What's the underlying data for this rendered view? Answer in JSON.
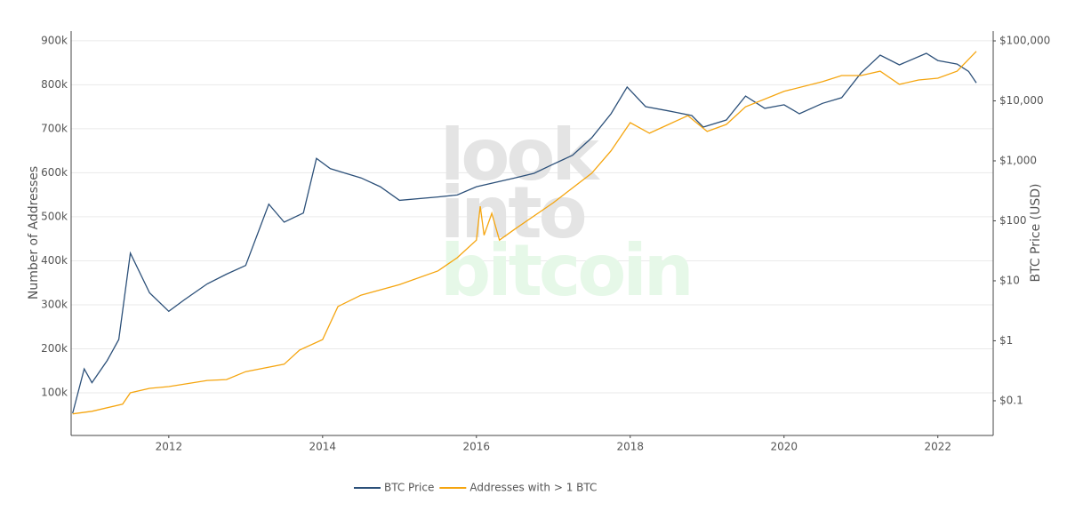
{
  "chart_data": {
    "type": "line",
    "watermark": [
      "look",
      "into",
      "bitcoin"
    ],
    "y_label": "Number of Addresses",
    "y2_label": "BTC Price (USD)",
    "xlim": [
      2010.73,
      2022.72
    ],
    "xticks": [
      2012,
      2014,
      2016,
      2018,
      2020,
      2022
    ],
    "ylim": [
      3000,
      922000
    ],
    "yticks": [
      {
        "value": 100000,
        "label": "100k"
      },
      {
        "value": 200000,
        "label": "200k"
      },
      {
        "value": 300000,
        "label": "300k"
      },
      {
        "value": 400000,
        "label": "400k"
      },
      {
        "value": 500000,
        "label": "500k"
      },
      {
        "value": 600000,
        "label": "600k"
      },
      {
        "value": 700000,
        "label": "700k"
      },
      {
        "value": 800000,
        "label": "800k"
      },
      {
        "value": 900000,
        "label": "900k"
      }
    ],
    "y2lim": [
      0.0264,
      145500
    ],
    "y2_log": true,
    "y2ticks": [
      {
        "value": 0.1,
        "label": "$0.1"
      },
      {
        "value": 1,
        "label": "$1"
      },
      {
        "value": 10,
        "label": "$10"
      },
      {
        "value": 100,
        "label": "$100"
      },
      {
        "value": 1000,
        "label": "$1,000"
      },
      {
        "value": 10000,
        "label": "$10,000"
      },
      {
        "value": 100000,
        "label": "$100,000"
      }
    ],
    "grid": true,
    "legend": "bottom",
    "series": [
      {
        "name": "BTC Price",
        "color": "#2c5079",
        "axis": "y2",
        "x": [
          2010.75,
          2010.9,
          2011.0,
          2011.2,
          2011.35,
          2011.5,
          2011.75,
          2012.0,
          2012.2,
          2012.5,
          2012.75,
          2013.0,
          2013.3,
          2013.5,
          2013.75,
          2013.92,
          2014.1,
          2014.5,
          2014.75,
          2015.0,
          2015.5,
          2015.75,
          2016.0,
          2016.5,
          2016.75,
          2017.0,
          2017.25,
          2017.5,
          2017.75,
          2017.96,
          2018.2,
          2018.5,
          2018.8,
          2018.95,
          2019.25,
          2019.5,
          2019.75,
          2020.0,
          2020.2,
          2020.5,
          2020.75,
          2021.0,
          2021.25,
          2021.5,
          2021.85,
          2022.0,
          2022.25,
          2022.4,
          2022.5
        ],
        "values": [
          0.062,
          0.34,
          0.2,
          0.47,
          1.05,
          29,
          6.3,
          3.1,
          4.8,
          8.9,
          12.9,
          18,
          190,
          95,
          135,
          1100,
          740,
          520,
          370,
          220,
          250,
          270,
          370,
          520,
          620,
          880,
          1240,
          2430,
          6100,
          17000,
          8000,
          6800,
          5700,
          3650,
          4800,
          12000,
          7500,
          8600,
          6100,
          9100,
          11300,
          29000,
          58000,
          39800,
          62000,
          47000,
          41000,
          31000,
          20000
        ]
      },
      {
        "name": "Addresses with > 1 BTC",
        "color": "#f5a50f",
        "axis": "y",
        "x": [
          2010.75,
          2011.0,
          2011.4,
          2011.5,
          2011.75,
          2012.0,
          2012.5,
          2012.75,
          2013.0,
          2013.5,
          2013.7,
          2014.0,
          2014.2,
          2014.5,
          2015.0,
          2015.5,
          2015.75,
          2016.0,
          2016.05,
          2016.1,
          2016.2,
          2016.3,
          2016.5,
          2017.0,
          2017.5,
          2017.75,
          2018.0,
          2018.25,
          2018.5,
          2018.75,
          2019.0,
          2019.25,
          2019.5,
          2020.0,
          2020.5,
          2020.75,
          2021.0,
          2021.25,
          2021.5,
          2021.75,
          2022.0,
          2022.25,
          2022.5
        ],
        "values": [
          52000,
          58000,
          74000,
          100000,
          110000,
          114000,
          128000,
          130000,
          148000,
          165000,
          197000,
          221000,
          296000,
          322000,
          346000,
          377000,
          407000,
          447000,
          524000,
          458000,
          508000,
          447000,
          472000,
          532000,
          599000,
          650000,
          714000,
          690000,
          710000,
          730000,
          694000,
          710000,
          750000,
          785000,
          807000,
          821000,
          821000,
          831000,
          801000,
          811000,
          815000,
          831000,
          876000
        ]
      }
    ]
  }
}
